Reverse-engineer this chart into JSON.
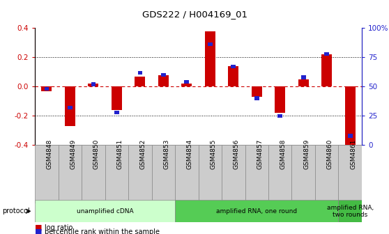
{
  "title": "GDS222 / H004169_01",
  "samples": [
    "GSM4848",
    "GSM4849",
    "GSM4850",
    "GSM4851",
    "GSM4852",
    "GSM4853",
    "GSM4854",
    "GSM4855",
    "GSM4856",
    "GSM4857",
    "GSM4858",
    "GSM4859",
    "GSM4860",
    "GSM4861"
  ],
  "log_ratio": [
    -0.03,
    -0.27,
    0.02,
    -0.16,
    0.07,
    0.08,
    0.02,
    0.38,
    0.14,
    -0.07,
    -0.18,
    0.05,
    0.22,
    -0.43
  ],
  "percentile": [
    48,
    32,
    52,
    28,
    62,
    60,
    54,
    86,
    67,
    40,
    25,
    58,
    78,
    8
  ],
  "ylim_left": [
    -0.4,
    0.4
  ],
  "ylim_right": [
    0,
    100
  ],
  "yticks_left": [
    -0.4,
    -0.2,
    0.0,
    0.2,
    0.4
  ],
  "yticks_right": [
    0,
    25,
    50,
    75,
    100
  ],
  "ytick_labels_right": [
    "0",
    "25",
    "50",
    "75",
    "100%"
  ],
  "red_color": "#cc0000",
  "blue_color": "#2222cc",
  "red_bar_width": 0.45,
  "blue_bar_width": 0.2,
  "protocol_groups": [
    {
      "label": "unamplified cDNA",
      "start": 0,
      "end": 5,
      "color": "#ccffcc"
    },
    {
      "label": "amplified RNA, one round",
      "start": 6,
      "end": 12,
      "color": "#55cc55"
    },
    {
      "label": "amplified RNA,\ntwo rounds",
      "start": 13,
      "end": 13,
      "color": "#44bb44"
    }
  ],
  "legend_red": "log ratio",
  "legend_blue": "percentile rank within the sample",
  "dotted_line_color": "#000000",
  "zero_line_color": "#cc0000",
  "spine_color": "#aaaaaa",
  "sample_box_color": "#cccccc",
  "sample_box_edge": "#888888",
  "bg_color": "#ffffff"
}
